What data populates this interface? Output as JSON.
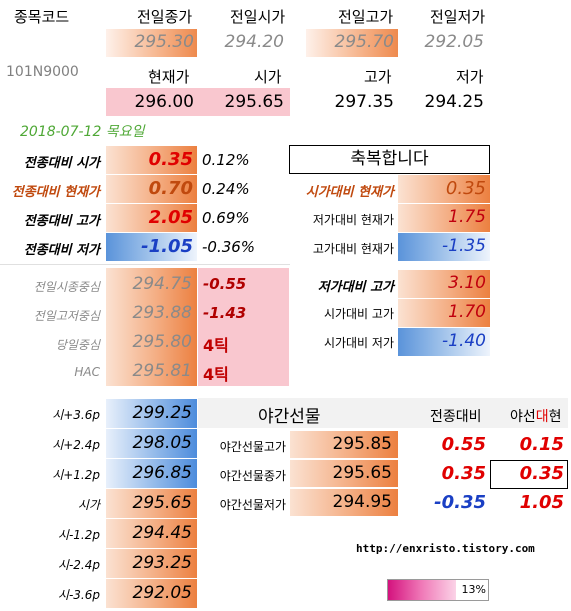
{
  "top": {
    "code_label": "종목코드",
    "code_value": "101N9000",
    "headers_row1": [
      "전일종가",
      "전일시가",
      "전일고가",
      "전일저가"
    ],
    "values_row1": [
      "295.30",
      "294.20",
      "295.70",
      "292.05"
    ],
    "headers_row2": [
      "현재가",
      "시가",
      "고가",
      "저가"
    ],
    "values_row2": [
      "296.00",
      "295.65",
      "297.35",
      "294.25"
    ]
  },
  "date": "2018-07-12  목요일",
  "compare_left": [
    {
      "label": "전종대비 시가",
      "value": "0.35",
      "pct": "0.12%"
    },
    {
      "label": "전종대비 현재가",
      "value": "0.70",
      "pct": "0.24%"
    },
    {
      "label": "전종대비 고가",
      "value": "2.05",
      "pct": "0.69%"
    },
    {
      "label": "전종대비 저가",
      "value": "-1.05",
      "pct": "-0.36%"
    }
  ],
  "celebrate": "축복합니다",
  "compare_right": [
    {
      "label": "시가대비 현재가",
      "value": "0.35"
    },
    {
      "label": "저가대비 현재가",
      "value": "1.75"
    },
    {
      "label": "고가대비 현재가",
      "value": "-1.35"
    },
    {
      "label": "저가대비 고가",
      "value": "3.10"
    },
    {
      "label": "시가대비 고가",
      "value": "1.70"
    },
    {
      "label": "시가대비 저가",
      "value": "-1.40"
    }
  ],
  "centers": [
    {
      "label": "전일시종중심",
      "value": "294.75",
      "diff": "-0.55"
    },
    {
      "label": "전일고저중심",
      "value": "293.88",
      "diff": "-1.43"
    },
    {
      "label": "당일중심",
      "value": "295.80",
      "diff": "4틱"
    },
    {
      "label": "HAC",
      "value": "295.81",
      "diff": "4틱"
    }
  ],
  "levels": [
    {
      "label": "시+3.6p",
      "value": "299.25"
    },
    {
      "label": "시+2.4p",
      "value": "298.05"
    },
    {
      "label": "시+1.2p",
      "value": "296.85"
    },
    {
      "label": "시가",
      "value": "295.65"
    },
    {
      "label": "시-1.2p",
      "value": "294.45"
    },
    {
      "label": "시-2.4p",
      "value": "293.25"
    },
    {
      "label": "시-3.6p",
      "value": "292.05"
    }
  ],
  "night": {
    "title": "야간선물",
    "col_diff": "전종대비",
    "col_night_a": "야선",
    "col_night_b": "대",
    "col_night_c": "현",
    "rows": [
      {
        "label": "야간선물고가",
        "value": "295.85",
        "diff": "0.55",
        "night": "0.15"
      },
      {
        "label": "야간선물종가",
        "value": "295.65",
        "diff": "0.35",
        "night": "0.35"
      },
      {
        "label": "야간선물저가",
        "value": "294.95",
        "diff": "-0.35",
        "night": "1.05"
      }
    ]
  },
  "url": "http://enxristo.tistory.com",
  "progress": {
    "percent": 13,
    "label": "13%"
  }
}
